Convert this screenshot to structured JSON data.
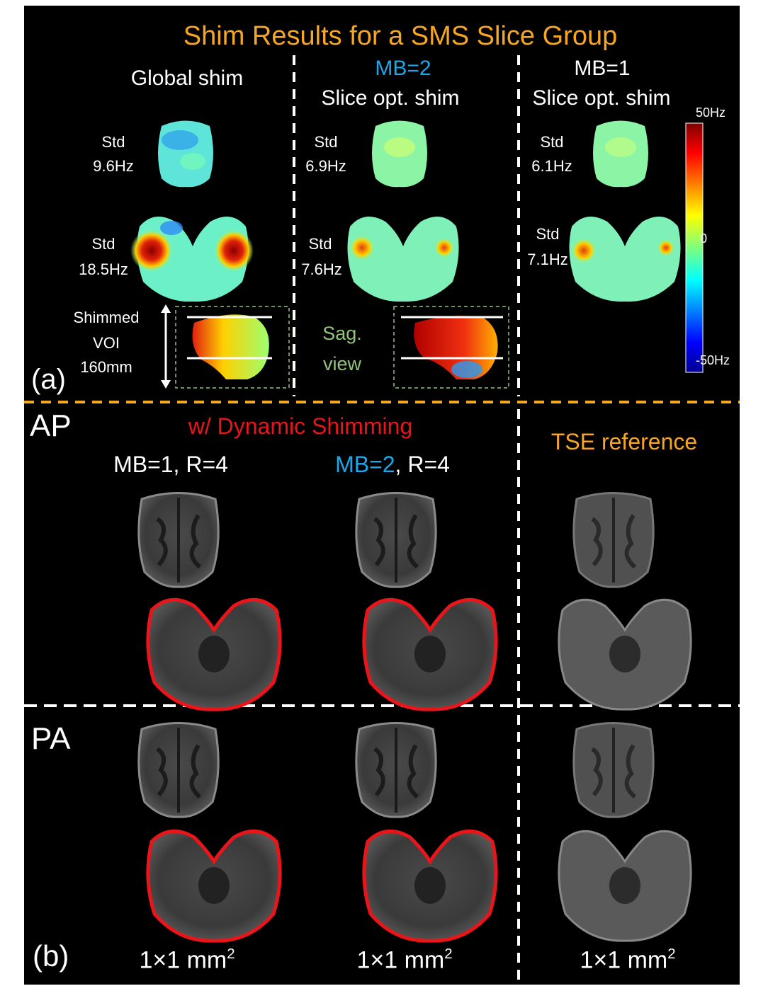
{
  "panel_a": {
    "title": "Shim Results for a SMS Slice Group",
    "label": "(a)",
    "columns": [
      {
        "header_line1": "",
        "header_line2": "Global shim",
        "std_top": [
          "Std",
          "9.6Hz"
        ],
        "std_bottom": [
          "Std",
          "18.5Hz"
        ]
      },
      {
        "header_line1": "MB=2",
        "header_line2": "Slice opt. shim",
        "std_top": [
          "Std",
          "6.9Hz"
        ],
        "std_bottom": [
          "Std",
          "7.6Hz"
        ]
      },
      {
        "header_line1": "MB=1",
        "header_line2": "Slice opt. shim",
        "std_top": [
          "Std",
          "6.1Hz"
        ],
        "std_bottom": [
          "Std",
          "7.1Hz"
        ]
      }
    ],
    "voi_label": [
      "Shimmed",
      "VOI",
      "160mm"
    ],
    "sag_label": [
      "Sag.",
      "view"
    ],
    "colorbar": {
      "max": "50Hz",
      "mid": "0",
      "min": "-50Hz"
    }
  },
  "panel_b": {
    "label": "(b)",
    "row_labels": [
      "AP",
      "PA"
    ],
    "dynamic_header": "w/ Dynamic Shimming",
    "col1_header": "MB=1, R=4",
    "col2_header_mb": "MB=2",
    "col2_header_rest": ", R=4",
    "ref_header": "TSE reference",
    "resolution": "1×1 mm",
    "resolution_sup": "2"
  },
  "colors": {
    "title": "#f5a623",
    "mb2": "#1ea7e8",
    "dynamic": "#e8161b",
    "tse": "#f5a623",
    "sag": "#93c47d",
    "divider_orange": "#f5a623",
    "text": "#ffffff"
  }
}
